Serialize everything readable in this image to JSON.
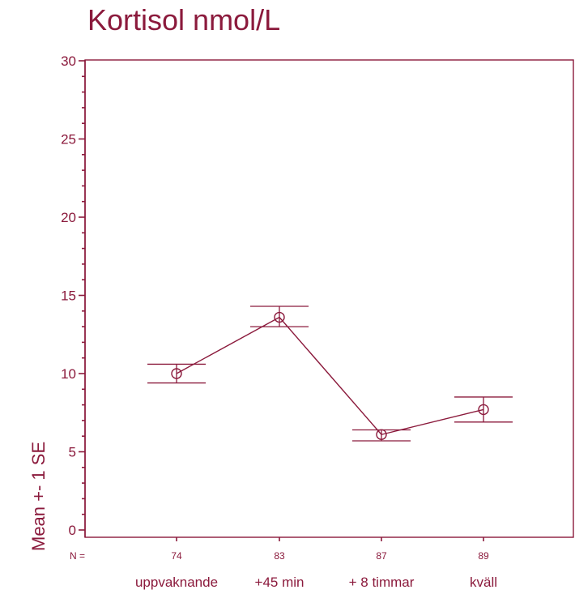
{
  "chart_data": {
    "type": "line",
    "title": "Kortisol nmol/L",
    "ylabel": "Mean +- 1 SE",
    "xlabel": "",
    "ylim": [
      0,
      30
    ],
    "yticks": [
      0,
      5,
      10,
      15,
      20,
      25,
      30
    ],
    "n_label": "N =",
    "categories": [
      "uppvaknande",
      "+45 min",
      "+ 8 timmar",
      "kväll"
    ],
    "n_values": [
      "74",
      "83",
      "87",
      "89"
    ],
    "series": [
      {
        "values": [
          10.0,
          13.6,
          6.1,
          7.7
        ],
        "se_low": [
          9.4,
          13.0,
          5.7,
          6.9
        ],
        "se_high": [
          10.6,
          14.3,
          6.4,
          8.5
        ]
      }
    ],
    "grid": false,
    "color": "#8b1a3c"
  }
}
